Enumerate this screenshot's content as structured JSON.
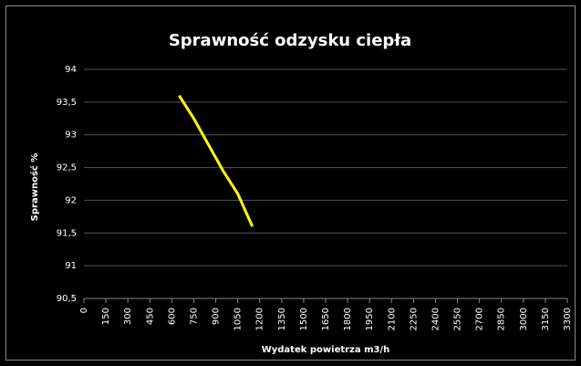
{
  "chart_data": {
    "type": "line",
    "title": "Sprawność odzysku ciepła",
    "x_label": "Wydatek powietrza m3/h",
    "y_label": "Sprawność %",
    "x": [
      650,
      750,
      850,
      950,
      1050,
      1150
    ],
    "series": [
      {
        "color": "#ffff00",
        "values": [
          93.6,
          93.25,
          92.85,
          92.45,
          92.1,
          91.6
        ]
      }
    ],
    "xlim": [
      0,
      3300
    ],
    "xticks": [
      0,
      150,
      300,
      450,
      600,
      750,
      900,
      1050,
      1200,
      1350,
      1500,
      1650,
      1800,
      1950,
      2100,
      2250,
      2400,
      2550,
      2700,
      2850,
      3000,
      3150,
      3300
    ],
    "ylim": [
      90.5,
      94
    ],
    "yticks": [
      {
        "value": 90.5,
        "label": "90,5"
      },
      91,
      {
        "value": 91.5,
        "label": "91,5"
      },
      92,
      {
        "value": 92.5,
        "label": "92,5"
      },
      93,
      {
        "value": 93.5,
        "label": "93,5"
      },
      94
    ],
    "grid": true
  }
}
